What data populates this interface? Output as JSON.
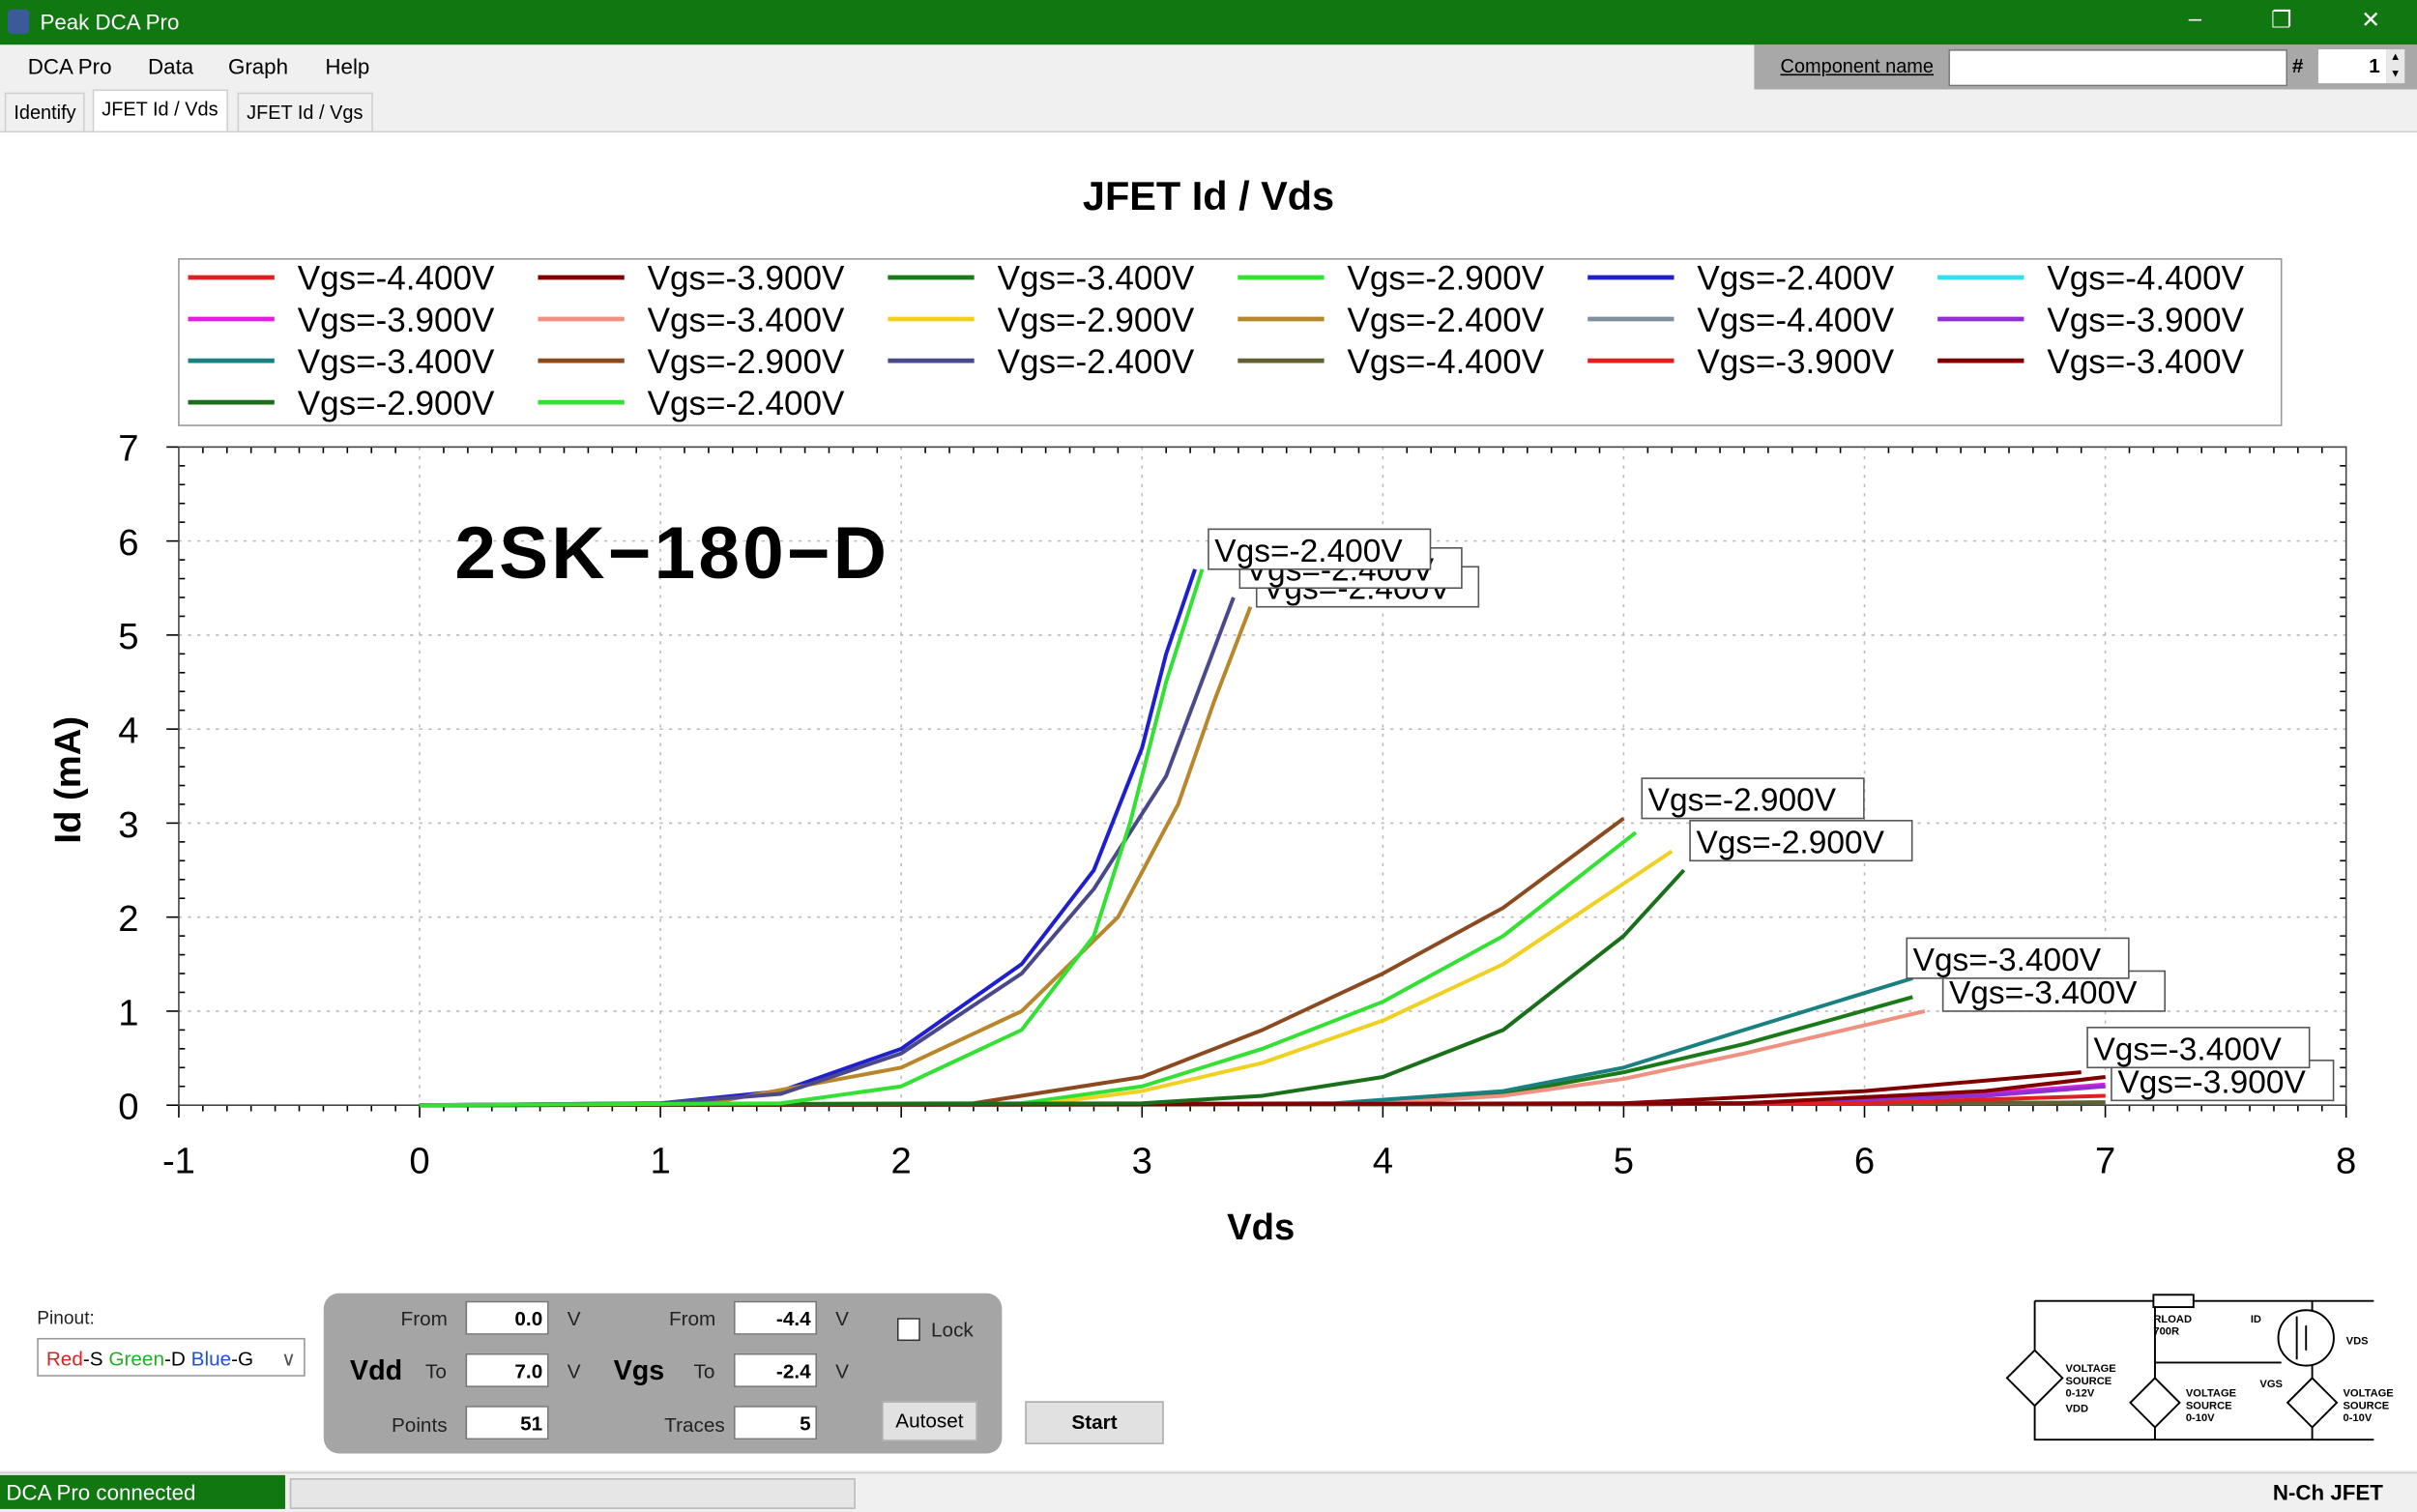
{
  "window": {
    "title": "Peak DCA Pro",
    "controls": [
      "–",
      "❐",
      "✕"
    ]
  },
  "menu": [
    "DCA Pro",
    "Data",
    "Graph",
    "Help"
  ],
  "component": {
    "label": "Component name",
    "value": "",
    "hash": "#",
    "number": "1"
  },
  "tabs": [
    {
      "label": "Identify",
      "active": false
    },
    {
      "label": "JFET Id / Vds",
      "active": true
    },
    {
      "label": "JFET Id / Vgs",
      "active": false
    }
  ],
  "annotation_text": "2SK−180−D",
  "chart_data": {
    "type": "line",
    "title": "JFET Id / Vds",
    "xlabel": "Vds",
    "ylabel": "Id (mA)",
    "xlim": [
      -1,
      8
    ],
    "ylim": [
      0,
      7
    ],
    "xticks": [
      -1,
      0,
      1,
      2,
      3,
      4,
      5,
      6,
      7,
      8
    ],
    "yticks": [
      0,
      1,
      2,
      3,
      4,
      5,
      6,
      7
    ],
    "grid": true,
    "legend_position": "top",
    "series": [
      {
        "name": "Vgs=-4.400V",
        "color": "#e02020",
        "points": [
          [
            0,
            0
          ],
          [
            5,
            0.01
          ],
          [
            7,
            0.03
          ]
        ]
      },
      {
        "name": "Vgs=-3.900V",
        "color": "#800000",
        "points": [
          [
            0,
            0
          ],
          [
            5,
            0.02
          ],
          [
            6,
            0.15
          ],
          [
            6.9,
            0.35
          ]
        ]
      },
      {
        "name": "Vgs=-3.400V",
        "color": "#1a7a1a",
        "points": [
          [
            0,
            0
          ],
          [
            4,
            0.02
          ],
          [
            4.5,
            0.12
          ],
          [
            5,
            0.35
          ],
          [
            5.5,
            0.65
          ],
          [
            6.2,
            1.15
          ]
        ]
      },
      {
        "name": "Vgs=-2.900V",
        "color": "#33e033",
        "points": [
          [
            0,
            0
          ],
          [
            2.5,
            0.02
          ],
          [
            3,
            0.2
          ],
          [
            3.5,
            0.6
          ],
          [
            4,
            1.1
          ],
          [
            4.5,
            1.8
          ],
          [
            5.05,
            2.9
          ]
        ]
      },
      {
        "name": "Vgs=-2.400V",
        "color": "#1f1fd0",
        "points": [
          [
            0,
            0
          ],
          [
            1,
            0.02
          ],
          [
            1.5,
            0.15
          ],
          [
            2,
            0.6
          ],
          [
            2.5,
            1.5
          ],
          [
            2.8,
            2.5
          ],
          [
            3.0,
            3.8
          ],
          [
            3.1,
            4.8
          ],
          [
            3.22,
            5.7
          ]
        ]
      },
      {
        "name": "Vgs=-4.400V",
        "color": "#30e0f0",
        "points": [
          [
            0,
            0
          ],
          [
            5,
            0.01
          ],
          [
            7,
            0.03
          ]
        ]
      },
      {
        "name": "Vgs=-3.900V",
        "color": "#e020e0",
        "points": [
          [
            0,
            0
          ],
          [
            5.5,
            0.02
          ],
          [
            6.5,
            0.12
          ],
          [
            7,
            0.22
          ]
        ]
      },
      {
        "name": "Vgs=-3.400V",
        "color": "#f09080",
        "points": [
          [
            0,
            0
          ],
          [
            4,
            0.02
          ],
          [
            4.5,
            0.1
          ],
          [
            5,
            0.28
          ],
          [
            5.5,
            0.55
          ],
          [
            6.25,
            1.0
          ]
        ]
      },
      {
        "name": "Vgs=-2.900V",
        "color": "#f0d020",
        "points": [
          [
            0,
            0
          ],
          [
            2.6,
            0.02
          ],
          [
            3,
            0.15
          ],
          [
            3.5,
            0.45
          ],
          [
            4,
            0.9
          ],
          [
            4.5,
            1.5
          ],
          [
            5.2,
            2.7
          ]
        ]
      },
      {
        "name": "Vgs=-2.400V",
        "color": "#b8862b",
        "points": [
          [
            0,
            0
          ],
          [
            1.2,
            0.02
          ],
          [
            2,
            0.4
          ],
          [
            2.5,
            1.0
          ],
          [
            2.9,
            2.0
          ],
          [
            3.15,
            3.2
          ],
          [
            3.3,
            4.3
          ],
          [
            3.45,
            5.3
          ]
        ]
      },
      {
        "name": "Vgs=-4.400V",
        "color": "#8090a0",
        "points": [
          [
            0,
            0
          ],
          [
            5,
            0.01
          ],
          [
            7,
            0.03
          ]
        ]
      },
      {
        "name": "Vgs=-3.900V",
        "color": "#9030d0",
        "points": [
          [
            0,
            0
          ],
          [
            5.5,
            0.02
          ],
          [
            6.5,
            0.1
          ],
          [
            7,
            0.2
          ]
        ]
      },
      {
        "name": "Vgs=-3.400V",
        "color": "#1a8080",
        "points": [
          [
            0,
            0
          ],
          [
            3.8,
            0.02
          ],
          [
            4.5,
            0.15
          ],
          [
            5,
            0.4
          ],
          [
            5.5,
            0.8
          ],
          [
            6.2,
            1.35
          ]
        ]
      },
      {
        "name": "Vgs=-2.900V",
        "color": "#8b4a20",
        "points": [
          [
            0,
            0
          ],
          [
            2.3,
            0.02
          ],
          [
            3,
            0.3
          ],
          [
            3.5,
            0.8
          ],
          [
            4,
            1.4
          ],
          [
            4.5,
            2.1
          ],
          [
            5.0,
            3.05
          ]
        ]
      },
      {
        "name": "Vgs=-2.400V",
        "color": "#4a4a8a",
        "points": [
          [
            0,
            0
          ],
          [
            1,
            0.02
          ],
          [
            1.5,
            0.12
          ],
          [
            2,
            0.55
          ],
          [
            2.5,
            1.4
          ],
          [
            2.8,
            2.3
          ],
          [
            3.1,
            3.5
          ],
          [
            3.38,
            5.4
          ]
        ]
      },
      {
        "name": "Vgs=-4.400V",
        "color": "#606030",
        "points": [
          [
            0,
            0
          ],
          [
            5,
            0.01
          ],
          [
            7,
            0.03
          ]
        ]
      },
      {
        "name": "Vgs=-3.900V",
        "color": "#e02020",
        "points": [
          [
            0,
            0
          ],
          [
            6,
            0.02
          ],
          [
            7,
            0.1
          ]
        ]
      },
      {
        "name": "Vgs=-3.400V",
        "color": "#800000",
        "points": [
          [
            0,
            0
          ],
          [
            5.5,
            0.02
          ],
          [
            6.5,
            0.15
          ],
          [
            7,
            0.3
          ]
        ]
      },
      {
        "name": "Vgs=-2.900V",
        "color": "#1a701a",
        "points": [
          [
            0,
            0
          ],
          [
            3,
            0.02
          ],
          [
            3.5,
            0.1
          ],
          [
            4,
            0.3
          ],
          [
            4.5,
            0.8
          ],
          [
            5.0,
            1.8
          ],
          [
            5.25,
            2.5
          ]
        ]
      },
      {
        "name": "Vgs=-2.400V",
        "color": "#33e033",
        "points": [
          [
            0,
            0
          ],
          [
            1.5,
            0.02
          ],
          [
            2,
            0.2
          ],
          [
            2.5,
            0.8
          ],
          [
            2.8,
            1.8
          ],
          [
            2.95,
            3.0
          ],
          [
            3.1,
            4.5
          ],
          [
            3.25,
            5.7
          ]
        ]
      }
    ],
    "annotations": [
      {
        "text": "Vgs=-2.400V",
        "x": 3.45,
        "y": 5.3
      },
      {
        "text": "Vgs=-2.400V",
        "x": 3.38,
        "y": 5.5
      },
      {
        "text": "Vgs=-2.400V",
        "x": 3.25,
        "y": 5.7
      },
      {
        "text": "Vgs=-2.900V",
        "x": 5.25,
        "y": 2.6
      },
      {
        "text": "Vgs=-2.900V",
        "x": 5.05,
        "y": 3.05
      },
      {
        "text": "Vgs=-3.400V",
        "x": 6.3,
        "y": 1.0
      },
      {
        "text": "Vgs=-3.400V",
        "x": 6.15,
        "y": 1.35
      },
      {
        "text": "Vgs=-3.900V",
        "x": 7.0,
        "y": 0.05
      },
      {
        "text": "Vgs=-3.400V",
        "x": 6.9,
        "y": 0.4
      }
    ]
  },
  "controls": {
    "pinout_label": "Pinout:",
    "pinout": [
      {
        "text": "Red",
        "color": "#e02020"
      },
      {
        "text": "-S ",
        "color": "#000000"
      },
      {
        "text": "Green",
        "color": "#20b020"
      },
      {
        "text": "-D ",
        "color": "#000000"
      },
      {
        "text": "Blue",
        "color": "#2050e0"
      },
      {
        "text": "-G",
        "color": "#000000"
      }
    ],
    "vdd": {
      "label": "Vdd",
      "from_label": "From",
      "from": "0.0",
      "to_label": "To",
      "to": "7.0",
      "points_label": "Points",
      "points": "51",
      "unit": "V"
    },
    "vgs": {
      "label": "Vgs",
      "from_label": "From",
      "from": "-4.4",
      "to_label": "To",
      "to": "-2.4",
      "traces_label": "Traces",
      "traces": "5",
      "unit": "V"
    },
    "lock_label": "Lock",
    "lock_checked": false,
    "autoset": "Autoset",
    "start": "Start"
  },
  "circuit": {
    "rload": "RLOAD",
    "rval": "700R",
    "id": "ID",
    "vds": "VDS",
    "vgs": "VGS",
    "src1": [
      "VOLTAGE",
      "SOURCE",
      "0-12V",
      "VDD"
    ],
    "src2": [
      "VOLTAGE",
      "SOURCE",
      "0-10V"
    ],
    "src3": [
      "VOLTAGE",
      "SOURCE",
      "0-10V"
    ]
  },
  "status": {
    "connection": "DCA Pro connected",
    "progress": 0,
    "device_type": "N-Ch JFET"
  }
}
